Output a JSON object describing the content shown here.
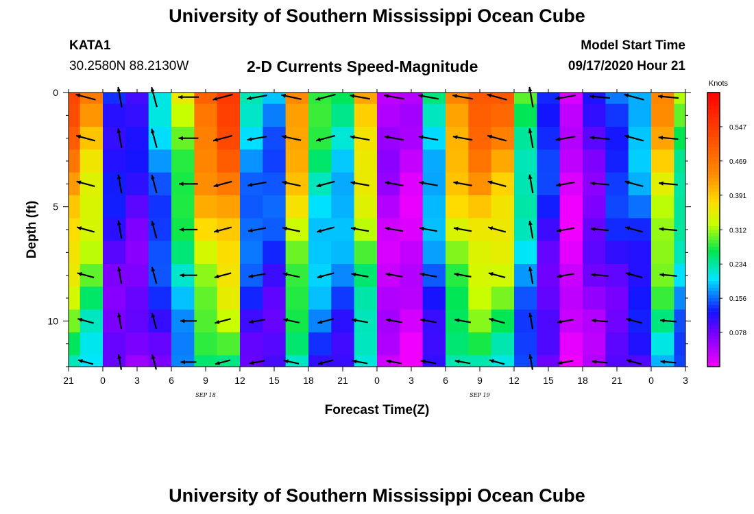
{
  "header": {
    "title": "University of Southern Mississippi Ocean Cube",
    "station": "KATA1",
    "coords": "30.2580N 88.2130W",
    "subtitle": "2-D Currents Speed-Magnitude",
    "model_start_label": "Model Start Time",
    "model_start_time": "09/17/2020 Hour 21"
  },
  "footer": {
    "title": "University of Southern Mississippi Ocean Cube"
  },
  "chart_data": {
    "type": "heatmap",
    "title": "2-D Currents Speed-Magnitude",
    "xlabel": "Forecast Time(Z)",
    "ylabel": "Depth (ft)",
    "x_tick_labels": [
      "21",
      "0",
      "3",
      "6",
      "9",
      "12",
      "15",
      "18",
      "21",
      "0",
      "3",
      "6",
      "9",
      "12",
      "15",
      "18",
      "21",
      "0",
      "3"
    ],
    "x_date_labels": [
      {
        "text": "SEP 18",
        "hour_offset": 15
      },
      {
        "text": "SEP 19",
        "hour_offset": 39
      }
    ],
    "x_range_hours": [
      0,
      54
    ],
    "y_tick_labels": [
      "0",
      "5",
      "10"
    ],
    "y_tick_values": [
      0,
      5,
      10
    ],
    "ylim": [
      0,
      12
    ],
    "colorbar": {
      "label": "Knots",
      "min": 0,
      "max": 0.625,
      "tick_labels": [
        "0.547",
        "0.469",
        "0.391",
        "0.312",
        "0.234",
        "0.156",
        "0.078"
      ],
      "tick_values": [
        0.547,
        0.469,
        0.391,
        0.312,
        0.234,
        0.156,
        0.078
      ]
    },
    "hours": [
      0,
      2,
      4,
      6,
      8,
      10,
      12,
      14,
      16,
      18,
      20,
      22,
      24,
      26,
      28,
      30,
      32,
      34,
      36,
      38,
      40,
      42,
      44,
      46,
      48,
      50,
      52,
      54
    ],
    "depths": [
      0,
      1,
      2,
      3,
      4,
      5,
      6,
      7,
      8,
      9,
      10,
      11,
      12
    ],
    "surface_speed_knots": [
      0.53,
      0.44,
      0.14,
      0.12,
      0.2,
      0.34,
      0.51,
      0.56,
      0.21,
      0.18,
      0.46,
      0.28,
      0.24,
      0.42,
      0.05,
      0.03,
      0.23,
      0.46,
      0.52,
      0.49,
      0.28,
      0.15,
      0.02,
      0.1,
      0.16,
      0.2,
      0.44,
      0.3
    ],
    "arrow_hours": [
      1.5,
      4.5,
      7.5,
      10.5,
      13.5,
      16.5,
      19.5,
      22.5,
      25.5,
      28.5,
      31.5,
      34.5,
      37.5,
      40.5,
      43.5,
      46.5,
      49.5,
      52.5
    ],
    "arrow_depths": [
      0.2,
      2,
      4,
      6,
      8,
      10,
      11.8
    ],
    "arrow_directions_deg": [
      165,
      100,
      105,
      180,
      195,
      190,
      168,
      195,
      170,
      170,
      170,
      170,
      165,
      100,
      190,
      175,
      165,
      175
    ]
  }
}
